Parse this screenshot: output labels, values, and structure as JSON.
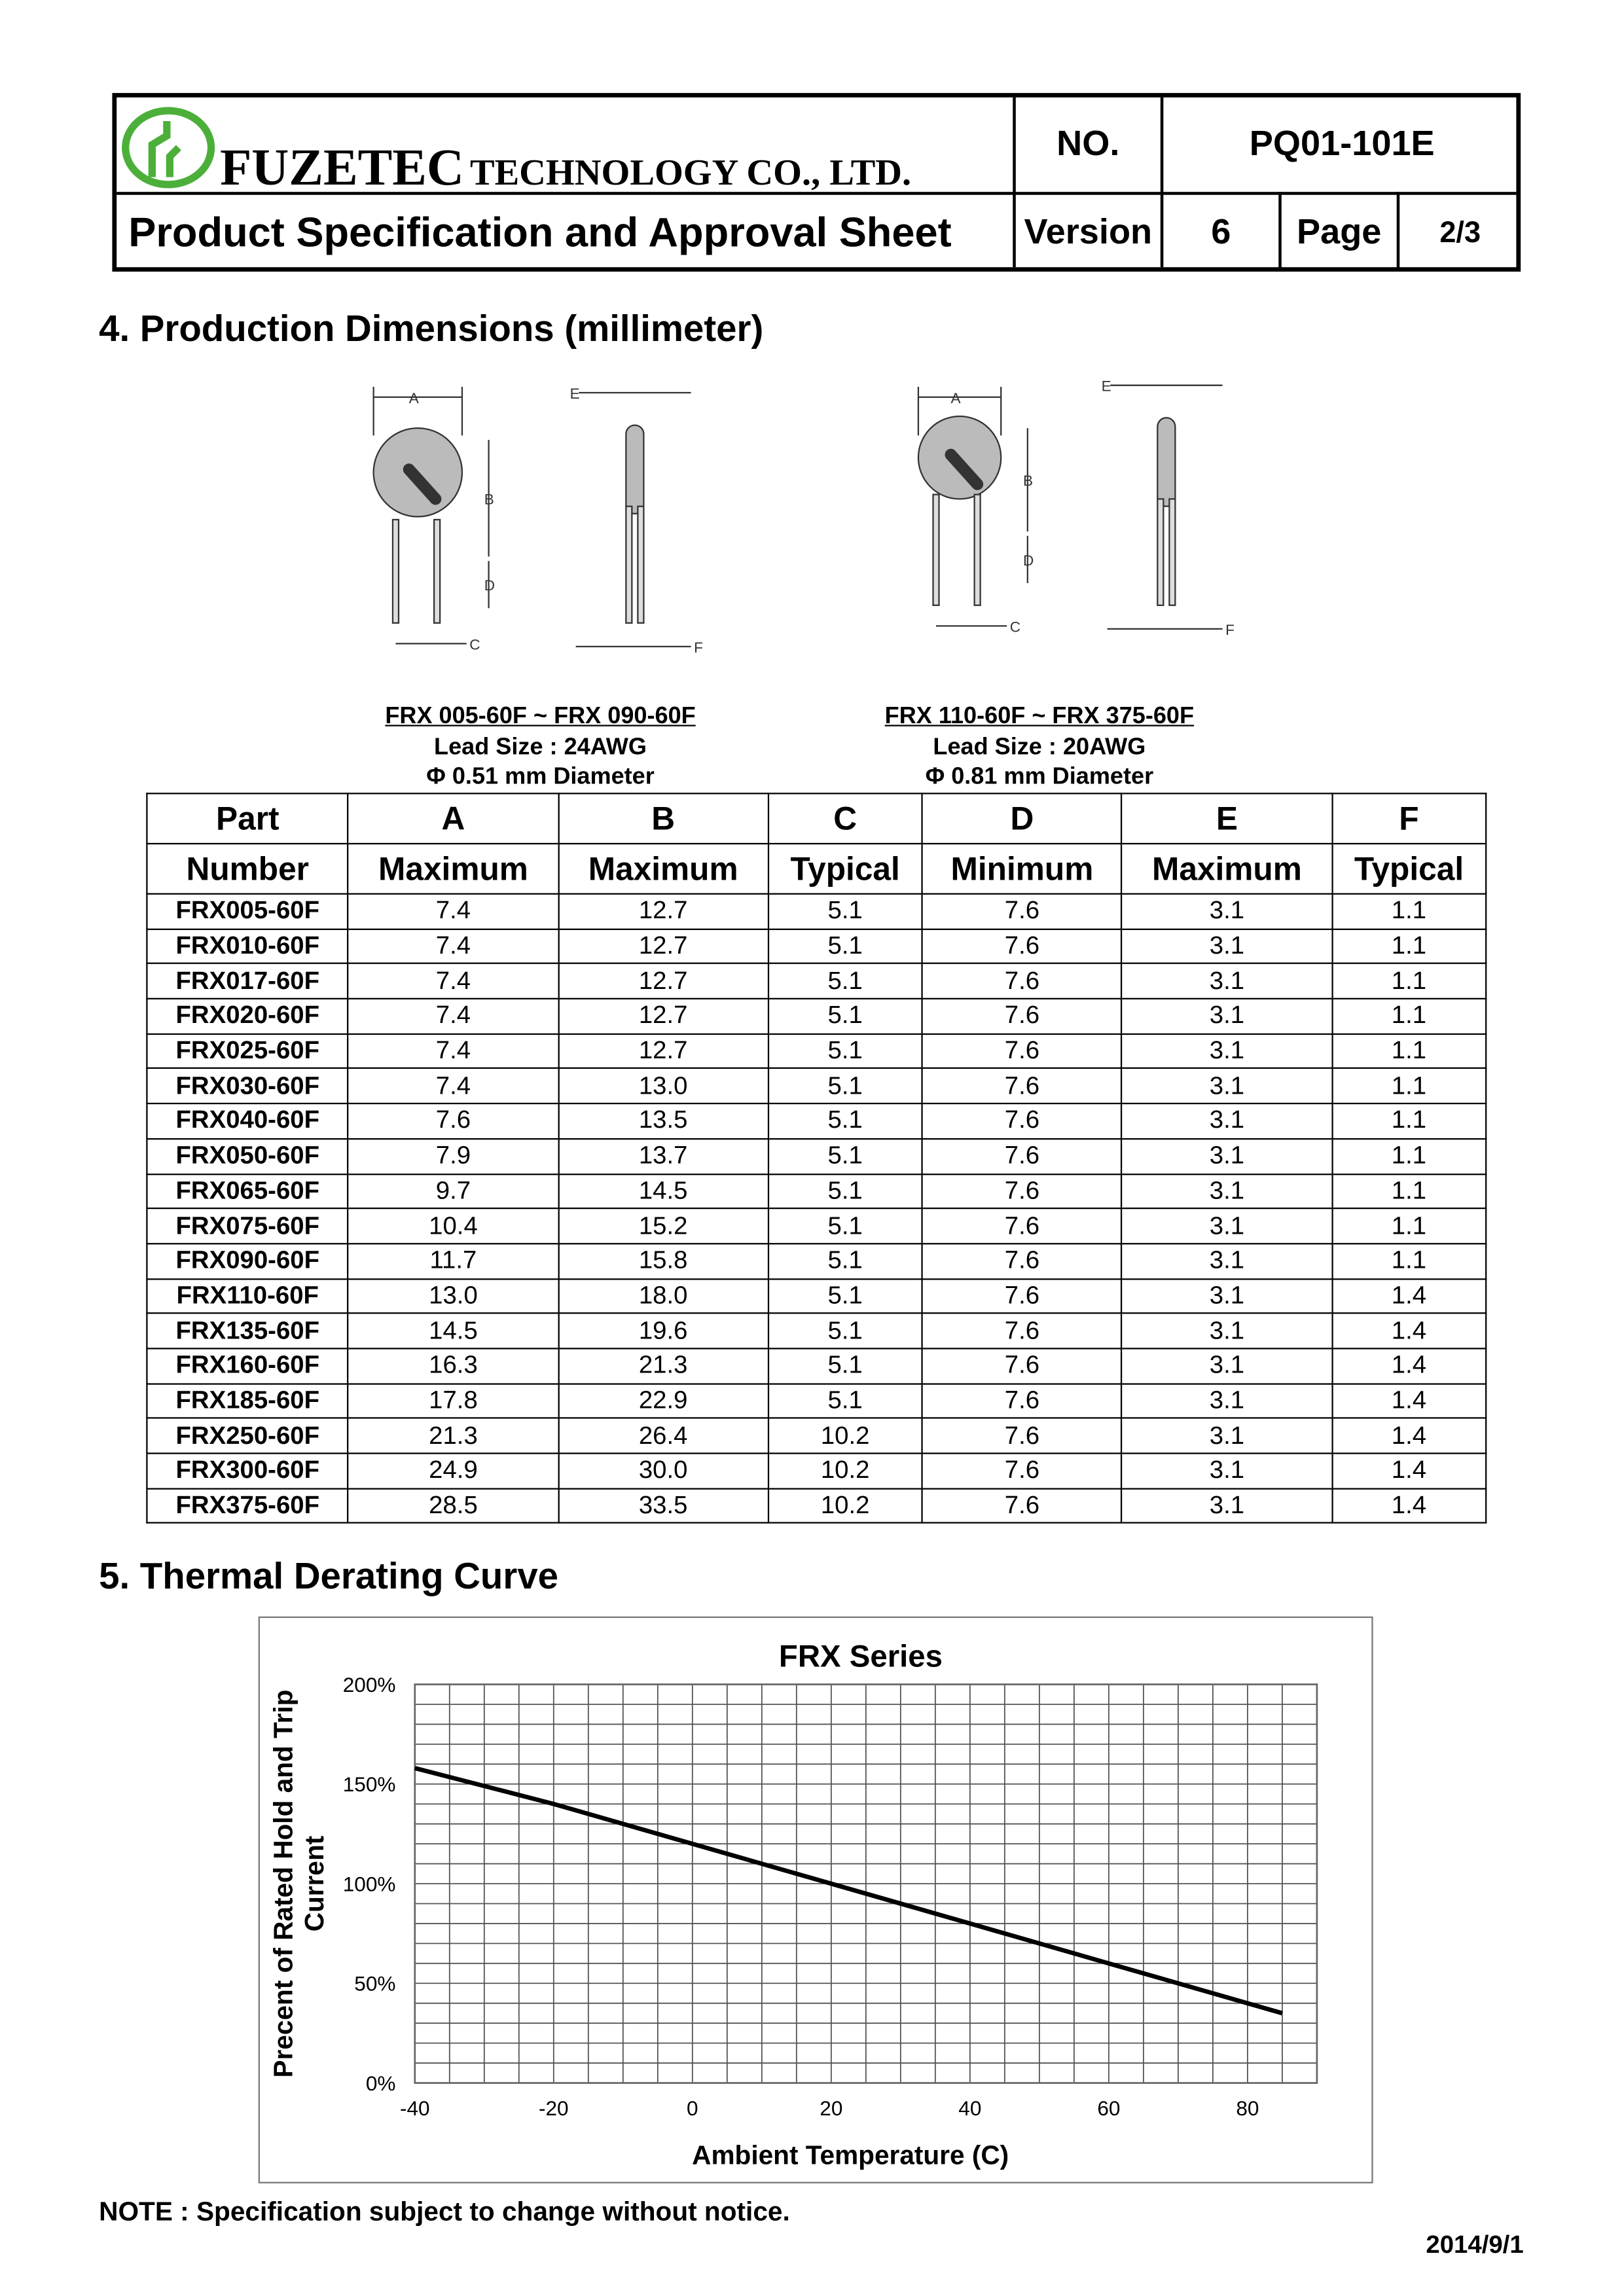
{
  "header": {
    "company_main": "FUZETEC",
    "company_rest": "TECHNOLOGY CO., LTD.",
    "doc_title": "Product Specification and Approval Sheet",
    "no_label": "NO.",
    "no_value": "PQ01-101E",
    "version_label": "Version",
    "version_value": "6",
    "page_label": "Page",
    "page_value": "2/3",
    "logo_color": "#4caf3a"
  },
  "section4": {
    "title": "4. Production Dimensions (millimeter)",
    "drawing_labels": [
      "A",
      "B",
      "C",
      "D",
      "E",
      "F"
    ],
    "groups": [
      {
        "range": "FRX 005-60F ~ FRX 090-60F",
        "lead": "Lead Size : 24AWG",
        "diameter": "Φ 0.51 mm Diameter"
      },
      {
        "range": "FRX 110-60F ~ FRX 375-60F",
        "lead": "Lead Size : 20AWG",
        "diameter": "Φ 0.81 mm Diameter"
      }
    ],
    "table": {
      "header_top": [
        "Part",
        "A",
        "B",
        "C",
        "D",
        "E",
        "F"
      ],
      "header_bottom": [
        "Number",
        "Maximum",
        "Maximum",
        "Typical",
        "Minimum",
        "Maximum",
        "Typical"
      ],
      "rows": [
        [
          "FRX005-60F",
          "7.4",
          "12.7",
          "5.1",
          "7.6",
          "3.1",
          "1.1"
        ],
        [
          "FRX010-60F",
          "7.4",
          "12.7",
          "5.1",
          "7.6",
          "3.1",
          "1.1"
        ],
        [
          "FRX017-60F",
          "7.4",
          "12.7",
          "5.1",
          "7.6",
          "3.1",
          "1.1"
        ],
        [
          "FRX020-60F",
          "7.4",
          "12.7",
          "5.1",
          "7.6",
          "3.1",
          "1.1"
        ],
        [
          "FRX025-60F",
          "7.4",
          "12.7",
          "5.1",
          "7.6",
          "3.1",
          "1.1"
        ],
        [
          "FRX030-60F",
          "7.4",
          "13.0",
          "5.1",
          "7.6",
          "3.1",
          "1.1"
        ],
        [
          "FRX040-60F",
          "7.6",
          "13.5",
          "5.1",
          "7.6",
          "3.1",
          "1.1"
        ],
        [
          "FRX050-60F",
          "7.9",
          "13.7",
          "5.1",
          "7.6",
          "3.1",
          "1.1"
        ],
        [
          "FRX065-60F",
          "9.7",
          "14.5",
          "5.1",
          "7.6",
          "3.1",
          "1.1"
        ],
        [
          "FRX075-60F",
          "10.4",
          "15.2",
          "5.1",
          "7.6",
          "3.1",
          "1.1"
        ],
        [
          "FRX090-60F",
          "11.7",
          "15.8",
          "5.1",
          "7.6",
          "3.1",
          "1.1"
        ],
        [
          "FRX110-60F",
          "13.0",
          "18.0",
          "5.1",
          "7.6",
          "3.1",
          "1.4"
        ],
        [
          "FRX135-60F",
          "14.5",
          "19.6",
          "5.1",
          "7.6",
          "3.1",
          "1.4"
        ],
        [
          "FRX160-60F",
          "16.3",
          "21.3",
          "5.1",
          "7.6",
          "3.1",
          "1.4"
        ],
        [
          "FRX185-60F",
          "17.8",
          "22.9",
          "5.1",
          "7.6",
          "3.1",
          "1.4"
        ],
        [
          "FRX250-60F",
          "21.3",
          "26.4",
          "10.2",
          "7.6",
          "3.1",
          "1.4"
        ],
        [
          "FRX300-60F",
          "24.9",
          "30.0",
          "10.2",
          "7.6",
          "3.1",
          "1.4"
        ],
        [
          "FRX375-60F",
          "28.5",
          "33.5",
          "10.2",
          "7.6",
          "3.1",
          "1.4"
        ]
      ]
    }
  },
  "section5": {
    "title": "5. Thermal Derating Curve"
  },
  "chart_data": {
    "type": "line",
    "title": "FRX  Series",
    "xlabel": "Ambient Temperature (C)",
    "ylabel": "Precent of Rated Hold and Trip Current",
    "xlim": [
      -40,
      90
    ],
    "ylim": [
      0,
      200
    ],
    "xticks": [
      "-40",
      "-20",
      "0",
      "20",
      "40",
      "60",
      "80"
    ],
    "yticks": [
      "0%",
      "50%",
      "100%",
      "150%",
      "200%"
    ],
    "grid": true,
    "x_minor_step": 5,
    "y_minor_step": 10,
    "series": [
      {
        "x": [
          -40,
          -20,
          0,
          20,
          40,
          60,
          80,
          85
        ],
        "y": [
          158,
          140,
          120,
          100,
          80,
          60,
          40,
          35
        ],
        "color": "#000000"
      }
    ]
  },
  "footer": {
    "note": "NOTE : Specification subject to change without notice.",
    "date": "2014/9/1"
  }
}
